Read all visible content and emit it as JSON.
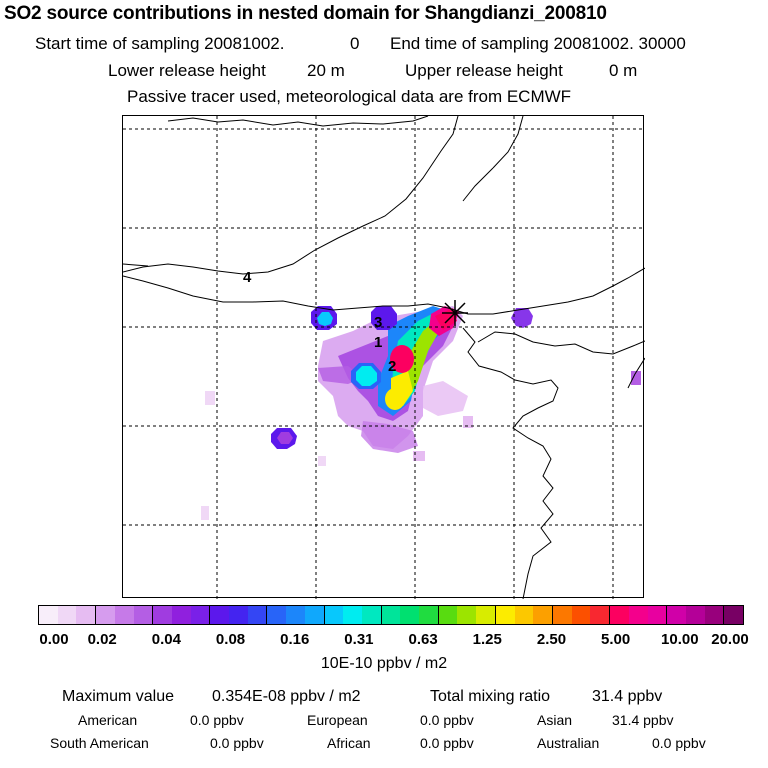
{
  "header": {
    "title": "SO2 source contributions in nested domain for Shangdianzi_200810",
    "start_label": "Start time of sampling 20081002.",
    "start_value": "0",
    "end_label": "End time of sampling 20081002. 30000",
    "lower_label": "Lower release height",
    "lower_value": "20 m",
    "upper_label": "Upper release height",
    "upper_value": "0 m",
    "tracer_note": "Passive tracer used, meteorological data are from ECMWF"
  },
  "map": {
    "region_labels": [
      "4",
      "3",
      "1",
      "2"
    ],
    "receptor_marker": "x-star-icon"
  },
  "colorbar": {
    "colors": [
      "#f8eefa",
      "#f0d8f6",
      "#e6bcf2",
      "#d69cee",
      "#c67ae8",
      "#b45ee4",
      "#a03ce0",
      "#9020de",
      "#7a20e8",
      "#5c18ec",
      "#4424f0",
      "#3446f4",
      "#2864f8",
      "#1c86fa",
      "#10a8fc",
      "#08c8fc",
      "#00ecf0",
      "#00e8c0",
      "#00e49a",
      "#00e070",
      "#20dc40",
      "#58dc10",
      "#9ce400",
      "#d8ec00",
      "#fcec00",
      "#fcc800",
      "#fca000",
      "#fc7800",
      "#fc5000",
      "#f82830",
      "#fc0060",
      "#f4008c",
      "#e800a0",
      "#d000a8",
      "#b40098",
      "#98007c",
      "#780064"
    ],
    "ticks": [
      "0.00",
      "0.02",
      "0.04",
      "0.08",
      "0.16",
      "0.31",
      "0.63",
      "1.25",
      "2.50",
      "5.00",
      "10.00",
      "20.00"
    ],
    "unit": "10E-10 ppbv / m2"
  },
  "stats": {
    "max_label": "Maximum value",
    "max_value": "0.354E-08 ppbv / m2",
    "total_label": "Total mixing ratio",
    "total_value": "31.4 ppbv",
    "regions": [
      {
        "name": "American",
        "value": "0.0 ppbv"
      },
      {
        "name": "European",
        "value": "0.0 ppbv"
      },
      {
        "name": "Asian",
        "value": "31.4 ppbv"
      },
      {
        "name": "South American",
        "value": "0.0 ppbv"
      },
      {
        "name": "African",
        "value": "0.0 ppbv"
      },
      {
        "name": "Australian",
        "value": "0.0 ppbv"
      }
    ]
  }
}
